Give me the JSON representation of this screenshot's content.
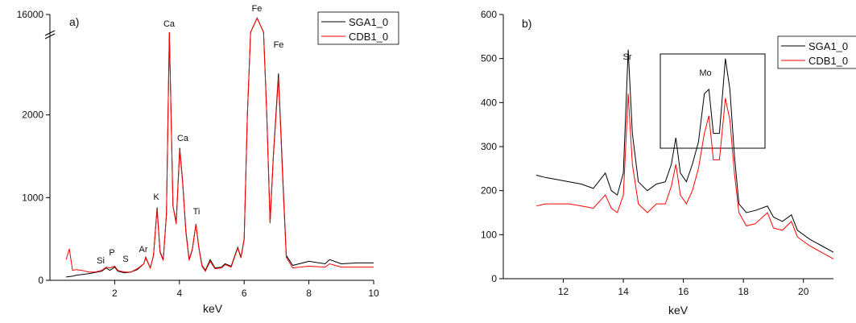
{
  "chart_data": [
    {
      "type": "line",
      "title": "a)",
      "xlabel": "keV",
      "x": [
        0.5,
        0.6,
        0.7,
        0.8,
        1.0,
        1.2,
        1.4,
        1.6,
        1.74,
        1.85,
        2.0,
        2.1,
        2.3,
        2.5,
        2.7,
        2.9,
        2.96,
        3.1,
        3.2,
        3.31,
        3.4,
        3.5,
        3.6,
        3.69,
        3.8,
        3.9,
        4.01,
        4.1,
        4.2,
        4.3,
        4.4,
        4.51,
        4.6,
        4.7,
        4.8,
        4.95,
        5.1,
        5.3,
        5.41,
        5.6,
        5.8,
        5.9,
        6.0,
        6.1,
        6.2,
        6.4,
        6.6,
        6.7,
        6.8,
        6.9,
        7.06,
        7.2,
        7.3,
        7.5,
        8.0,
        8.5,
        8.64,
        9.0,
        9.5,
        10.0
      ],
      "series": [
        {
          "name": "SGA1_0",
          "color": "#000000",
          "values": [
            40,
            45,
            50,
            60,
            70,
            80,
            95,
            110,
            150,
            120,
            160,
            110,
            90,
            100,
            130,
            200,
            280,
            150,
            300,
            880,
            350,
            250,
            800,
            15000,
            900,
            700,
            1600,
            1200,
            600,
            250,
            380,
            680,
            400,
            180,
            120,
            250,
            150,
            160,
            200,
            170,
            400,
            280,
            500,
            2000,
            8000,
            15800,
            8000,
            2000,
            700,
            1500,
            2500,
            1200,
            300,
            180,
            230,
            200,
            250,
            200,
            210,
            210
          ]
        },
        {
          "name": "CDB1_0",
          "color": "#ff0000",
          "values": [
            250,
            380,
            120,
            130,
            120,
            100,
            100,
            120,
            160,
            150,
            170,
            120,
            100,
            100,
            140,
            200,
            270,
            150,
            300,
            860,
            340,
            240,
            800,
            15000,
            900,
            680,
            1580,
            1180,
            580,
            240,
            370,
            680,
            390,
            170,
            110,
            230,
            140,
            150,
            190,
            160,
            390,
            270,
            490,
            2000,
            8000,
            15800,
            8000,
            2000,
            690,
            1480,
            2450,
            1150,
            280,
            150,
            170,
            160,
            200,
            160,
            160,
            160
          ]
        }
      ],
      "xlim": [
        0,
        10
      ],
      "xticks": [
        2,
        4,
        6,
        8,
        10
      ],
      "ylim": [
        0,
        16000
      ],
      "yticks": [
        0,
        1000,
        2000,
        16000
      ],
      "y_break": [
        3000,
        15000
      ],
      "annotations": [
        "Si",
        "P",
        "S",
        "Ar",
        "K",
        "Ca",
        "Ca",
        "Ti",
        "Fe",
        "Fe"
      ]
    },
    {
      "type": "line",
      "title": "b)",
      "xlabel": "keV",
      "x": [
        11.1,
        11.4,
        11.8,
        12.2,
        12.6,
        13.0,
        13.4,
        13.6,
        13.8,
        14.0,
        14.16,
        14.3,
        14.5,
        14.8,
        15.1,
        15.4,
        15.6,
        15.75,
        15.9,
        16.1,
        16.3,
        16.5,
        16.7,
        16.85,
        17.0,
        17.2,
        17.4,
        17.55,
        17.7,
        17.85,
        18.1,
        18.4,
        18.8,
        19.0,
        19.3,
        19.6,
        19.8,
        20.2,
        20.6,
        21.0
      ],
      "series": [
        {
          "name": "SGA1_0",
          "color": "#000000",
          "values": [
            235,
            230,
            225,
            220,
            215,
            205,
            240,
            200,
            190,
            240,
            520,
            330,
            220,
            200,
            215,
            220,
            260,
            320,
            240,
            220,
            260,
            310,
            420,
            430,
            330,
            330,
            500,
            430,
            280,
            170,
            150,
            155,
            165,
            140,
            130,
            145,
            110,
            90,
            75,
            60
          ]
        },
        {
          "name": "CDB1_0",
          "color": "#ff0000",
          "values": [
            165,
            170,
            170,
            170,
            165,
            160,
            190,
            160,
            150,
            190,
            420,
            260,
            170,
            150,
            170,
            170,
            210,
            260,
            190,
            170,
            200,
            250,
            330,
            370,
            270,
            270,
            410,
            360,
            240,
            150,
            120,
            125,
            150,
            115,
            110,
            130,
            95,
            75,
            60,
            45
          ]
        }
      ],
      "xlim": [
        10,
        21
      ],
      "xticks": [
        12,
        14,
        16,
        18,
        20
      ],
      "ylim": [
        0,
        600
      ],
      "yticks": [
        0,
        100,
        200,
        300,
        400,
        500,
        600
      ],
      "annotations": [
        "Sr",
        "Mo"
      ]
    }
  ]
}
